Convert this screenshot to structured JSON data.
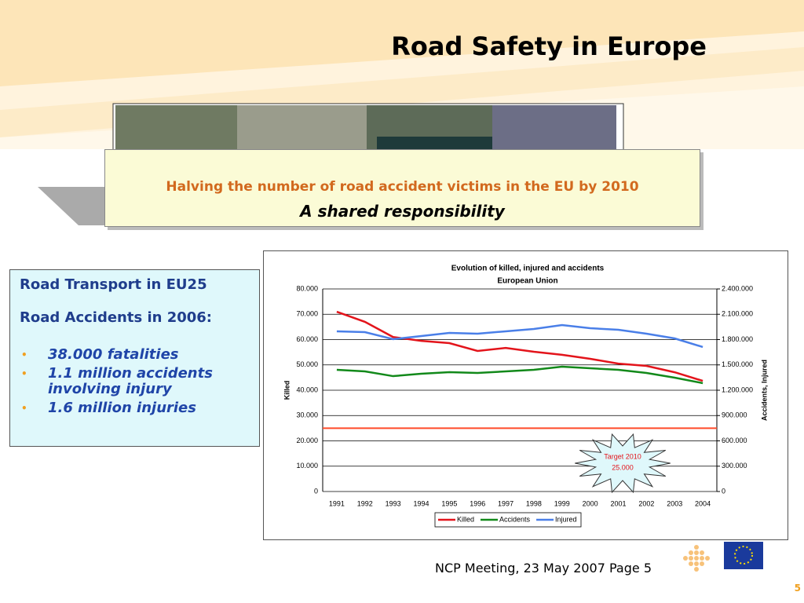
{
  "title": "Road Safety in Europe",
  "banner": {
    "headline": "Halving the number of road accident victims in the EU by 2010",
    "tagline": "A shared responsibility"
  },
  "info": {
    "heading1": "Road Transport in EU25",
    "heading2": "Road Accidents in 2006:",
    "bullets": [
      "38.000 fatalities",
      "1.1 million accidents involving injury",
      "1.6 million injuries"
    ]
  },
  "chart_data": {
    "type": "line",
    "title": "Evolution of killed, injured and accidents",
    "subtitle": "European Union",
    "y_label": "Killed",
    "y2_label": "Accidents, Injured",
    "categories": [
      "1991",
      "1992",
      "1993",
      "1994",
      "1995",
      "1996",
      "1997",
      "1998",
      "1999",
      "2000",
      "2001",
      "2002",
      "2003",
      "2004"
    ],
    "series": [
      {
        "name": "Killed",
        "color": "#e3141b",
        "values": [
          71000,
          67000,
          61000,
          59500,
          58600,
          55500,
          56700,
          55200,
          54000,
          52400,
          50500,
          49600,
          47100,
          43700
        ]
      },
      {
        "name": "Accidents",
        "color": "#12891a",
        "axis": "y2",
        "values": [
          1442000,
          1423000,
          1367000,
          1395000,
          1414000,
          1405000,
          1423000,
          1442000,
          1479000,
          1460000,
          1442000,
          1405000,
          1349000,
          1284000
        ]
      },
      {
        "name": "Injured",
        "color": "#4a7fe8",
        "axis": "y2",
        "values": [
          1898000,
          1888000,
          1805000,
          1842000,
          1879000,
          1870000,
          1898000,
          1926000,
          1972000,
          1935000,
          1916000,
          1870000,
          1814000,
          1712000
        ]
      }
    ],
    "target": {
      "name": "Target 2010",
      "value": 25000,
      "value_label": "25.000",
      "color": "#ff4a2a"
    },
    "ylim": [
      0,
      80000
    ],
    "yticks": [
      {
        "value": 0,
        "label": "0"
      },
      {
        "value": 10000,
        "label": "10.000"
      },
      {
        "value": 20000,
        "label": "20.000"
      },
      {
        "value": 30000,
        "label": "30.000"
      },
      {
        "value": 40000,
        "label": "40.000"
      },
      {
        "value": 50000,
        "label": "50.000"
      },
      {
        "value": 60000,
        "label": "60.000"
      },
      {
        "value": 70000,
        "label": "70.000"
      },
      {
        "value": 80000,
        "label": "80.000"
      }
    ],
    "y2lim": [
      0,
      2400000
    ],
    "y2ticks": [
      {
        "value": 0,
        "label": "0"
      },
      {
        "value": 300000,
        "label": "300.000"
      },
      {
        "value": 600000,
        "label": "600.000"
      },
      {
        "value": 900000,
        "label": "900.000"
      },
      {
        "value": 1200000,
        "label": "1.200.000"
      },
      {
        "value": 1500000,
        "label": "1.500.000"
      },
      {
        "value": 1800000,
        "label": "1.800.000"
      },
      {
        "value": 2100000,
        "label": "2.100.000"
      },
      {
        "value": 2400000,
        "label": "2.400.000"
      }
    ],
    "grid": true,
    "legend": "bottom"
  },
  "footer": "NCP Meeting, 23 May 2007 Page 5",
  "page_number": "5"
}
